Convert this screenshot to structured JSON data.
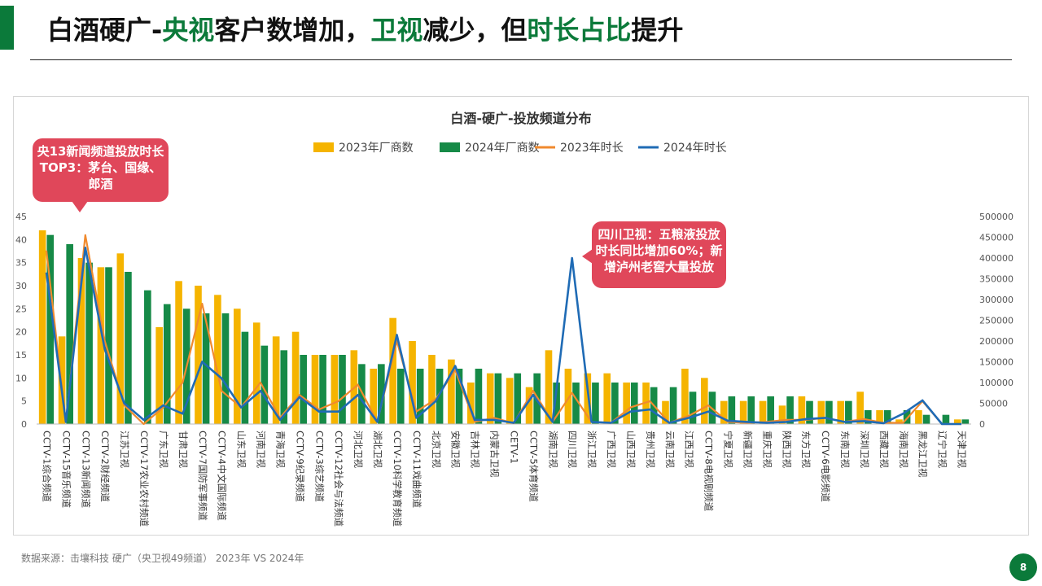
{
  "slide": {
    "title_parts": [
      {
        "text": "白酒硬广-",
        "highlight": false
      },
      {
        "text": "央视",
        "highlight": true
      },
      {
        "text": "客户数增加，",
        "highlight": false
      },
      {
        "text": "卫视",
        "highlight": true
      },
      {
        "text": "减少，但",
        "highlight": false
      },
      {
        "text": "时长占比",
        "highlight": true
      },
      {
        "text": "提升",
        "highlight": false
      }
    ],
    "source": "数据来源：击壤科技  硬广（央卫视49频道）  2023年 VS 2024年",
    "page_number": "8"
  },
  "callouts": [
    {
      "text": "央13新闻频道投放时长TOP3：茅台、国缘、郎酒"
    },
    {
      "text": "四川卫视：五粮液投放时长同比增加60%；新增泸州老窖大量投放"
    }
  ],
  "colors": {
    "accent": "#0b7a3a",
    "bar2023": "#f5b400",
    "bar2024": "#168a47",
    "line2023": "#f08a2e",
    "line2024": "#1f6bb5",
    "callout": "#e0475a"
  },
  "chart_data": {
    "type": "bar",
    "title": "白酒-硬广-投放频道分布",
    "legend_position": "top",
    "grid": false,
    "categories": [
      "CCTV-1综合频道",
      "CCTV-15音乐频道",
      "CCTV-13新闻频道",
      "CCTV-2财经频道",
      "江苏卫视",
      "CCTV-17农业农村频道",
      "广东卫视",
      "甘肃卫视",
      "CCTV-7国防军事频道",
      "CCTV-4中文国际频道",
      "山东卫视",
      "河南卫视",
      "青海卫视",
      "CCTV-9纪录频道",
      "CCTV-3综艺频道",
      "CCTV-12社会与法频道",
      "河北卫视",
      "湖北卫视",
      "CCTV-10科学教育频道",
      "CCTV-11戏曲频道",
      "北京卫视",
      "安徽卫视",
      "吉林卫视",
      "内蒙古卫视",
      "CETV-1",
      "CCTV-5体育频道",
      "湖南卫视",
      "四川卫视",
      "浙江卫视",
      "广西卫视",
      "山西卫视",
      "贵州卫视",
      "云南卫视",
      "江西卫视",
      "CCTV-8电视剧频道",
      "宁夏卫视",
      "新疆卫视",
      "重庆卫视",
      "陕西卫视",
      "东方卫视",
      "CCTV-6电影频道",
      "东南卫视",
      "深圳卫视",
      "西藏卫视",
      "海南卫视",
      "黑龙江卫视",
      "辽宁卫视",
      "天津卫视"
    ],
    "y_left": {
      "range": [
        0,
        45
      ],
      "ticks": [
        0,
        5,
        10,
        15,
        20,
        25,
        30,
        35,
        40,
        45
      ]
    },
    "y_right": {
      "range": [
        0,
        500000
      ],
      "ticks": [
        0,
        50000,
        100000,
        150000,
        200000,
        250000,
        300000,
        350000,
        400000,
        450000,
        500000
      ]
    },
    "series": [
      {
        "name": "2023年厂商数",
        "kind": "bar",
        "axis": "left",
        "values": [
          42,
          19,
          36,
          34,
          37,
          0,
          21,
          31,
          30,
          28,
          25,
          22,
          19,
          20,
          15,
          15,
          16,
          12,
          23,
          18,
          15,
          14,
          9,
          11,
          10,
          8,
          16,
          12,
          11,
          11,
          9,
          9,
          5,
          12,
          10,
          5,
          5,
          5,
          4,
          6,
          5,
          5,
          7,
          3,
          1,
          3,
          0,
          1
        ]
      },
      {
        "name": "2024年厂商数",
        "kind": "bar",
        "axis": "left",
        "values": [
          41,
          39,
          35,
          34,
          33,
          29,
          26,
          25,
          24,
          24,
          20,
          17,
          16,
          15,
          15,
          15,
          13,
          13,
          12,
          12,
          12,
          12,
          12,
          11,
          11,
          11,
          9,
          9,
          9,
          9,
          9,
          8,
          8,
          7,
          7,
          6,
          6,
          6,
          6,
          5,
          5,
          5,
          3,
          3,
          3,
          2,
          2,
          1
        ]
      },
      {
        "name": "2023年时长",
        "kind": "line",
        "axis": "right",
        "values": [
          418000,
          5000,
          455000,
          200000,
          45000,
          0,
          40000,
          100000,
          290000,
          80000,
          40000,
          100000,
          15000,
          70000,
          35000,
          55000,
          95000,
          5000,
          200000,
          30000,
          60000,
          130000,
          5000,
          15000,
          2000,
          80000,
          5000,
          75000,
          5000,
          3000,
          40000,
          55000,
          3000,
          20000,
          45000,
          5000,
          3000,
          5000,
          10000,
          10000,
          15000,
          5000,
          12000,
          3000,
          3000,
          55000,
          0,
          0
        ]
      },
      {
        "name": "2024年时长",
        "kind": "line",
        "axis": "right",
        "values": [
          365000,
          5000,
          425000,
          180000,
          50000,
          10000,
          45000,
          25000,
          150000,
          110000,
          40000,
          80000,
          10000,
          65000,
          30000,
          30000,
          70000,
          5000,
          215000,
          15000,
          55000,
          140000,
          10000,
          10000,
          3000,
          70000,
          5000,
          400000,
          5000,
          3000,
          30000,
          35000,
          3000,
          15000,
          30000,
          8000,
          5000,
          3000,
          5000,
          12000,
          15000,
          5000,
          7000,
          2000,
          25000,
          57000,
          0,
          0
        ]
      }
    ]
  }
}
